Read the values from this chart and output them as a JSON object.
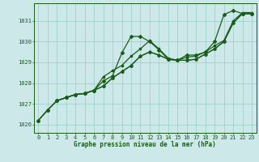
{
  "bg_color": "#cce8e8",
  "grid_color": "#99cccc",
  "line_color": "#1a5c1a",
  "xlabel": "Graphe pression niveau de la mer (hPa)",
  "ylim": [
    1025.6,
    1031.85
  ],
  "xlim": [
    -0.5,
    23.5
  ],
  "yticks": [
    1026,
    1027,
    1028,
    1029,
    1030,
    1031
  ],
  "xticks": [
    0,
    1,
    2,
    3,
    4,
    5,
    6,
    7,
    8,
    9,
    10,
    11,
    12,
    13,
    14,
    15,
    16,
    17,
    18,
    19,
    20,
    21,
    22,
    23
  ],
  "series1_x": [
    0,
    1,
    2,
    3,
    4,
    5,
    6,
    7,
    8,
    9,
    10,
    11,
    12,
    13,
    14,
    15,
    16,
    17,
    18,
    19,
    20,
    21,
    22,
    23
  ],
  "series1_y": [
    1026.2,
    1026.7,
    1027.15,
    1027.3,
    1027.45,
    1027.5,
    1027.65,
    1028.1,
    1028.35,
    1029.45,
    1030.25,
    1030.25,
    1030.0,
    1029.6,
    1029.15,
    1029.1,
    1029.35,
    1029.35,
    1029.5,
    1030.0,
    1031.3,
    1031.5,
    1031.35,
    1031.35
  ],
  "series2_x": [
    0,
    1,
    2,
    3,
    4,
    5,
    6,
    7,
    8,
    9,
    10,
    11,
    12,
    13,
    14,
    15,
    16,
    17,
    18,
    19,
    20,
    21,
    22,
    23
  ],
  "series2_y": [
    1026.2,
    1026.7,
    1027.15,
    1027.3,
    1027.45,
    1027.5,
    1027.65,
    1027.85,
    1028.25,
    1028.55,
    1028.85,
    1029.3,
    1029.5,
    1029.35,
    1029.15,
    1029.1,
    1029.1,
    1029.15,
    1029.4,
    1029.65,
    1030.0,
    1030.9,
    1031.35,
    1031.35
  ],
  "series3_x": [
    0,
    1,
    2,
    3,
    4,
    5,
    6,
    7,
    8,
    9,
    10,
    11,
    12,
    13,
    14,
    15,
    16,
    17,
    18,
    19,
    20,
    21,
    22,
    23
  ],
  "series3_y": [
    1026.2,
    1026.7,
    1027.15,
    1027.3,
    1027.45,
    1027.5,
    1027.65,
    1028.3,
    1028.6,
    1028.85,
    1029.3,
    1029.65,
    1030.05,
    1029.65,
    1029.2,
    1029.1,
    1029.25,
    1029.3,
    1029.5,
    1029.8,
    1030.05,
    1031.0,
    1031.4,
    1031.4
  ],
  "series4_x": [
    2,
    3,
    4,
    5,
    6,
    7,
    8,
    9,
    10,
    11,
    12,
    13,
    14,
    15,
    16,
    17,
    18,
    19,
    20,
    21,
    22,
    23
  ],
  "series4_y": [
    1027.15,
    1027.3,
    1027.45,
    1027.5,
    1027.65,
    1027.85,
    1028.25,
    1028.55,
    1028.85,
    1029.3,
    1029.5,
    1029.35,
    1029.15,
    1029.1,
    1029.1,
    1029.15,
    1029.4,
    1029.65,
    1030.0,
    1030.9,
    1031.35,
    1031.35
  ]
}
